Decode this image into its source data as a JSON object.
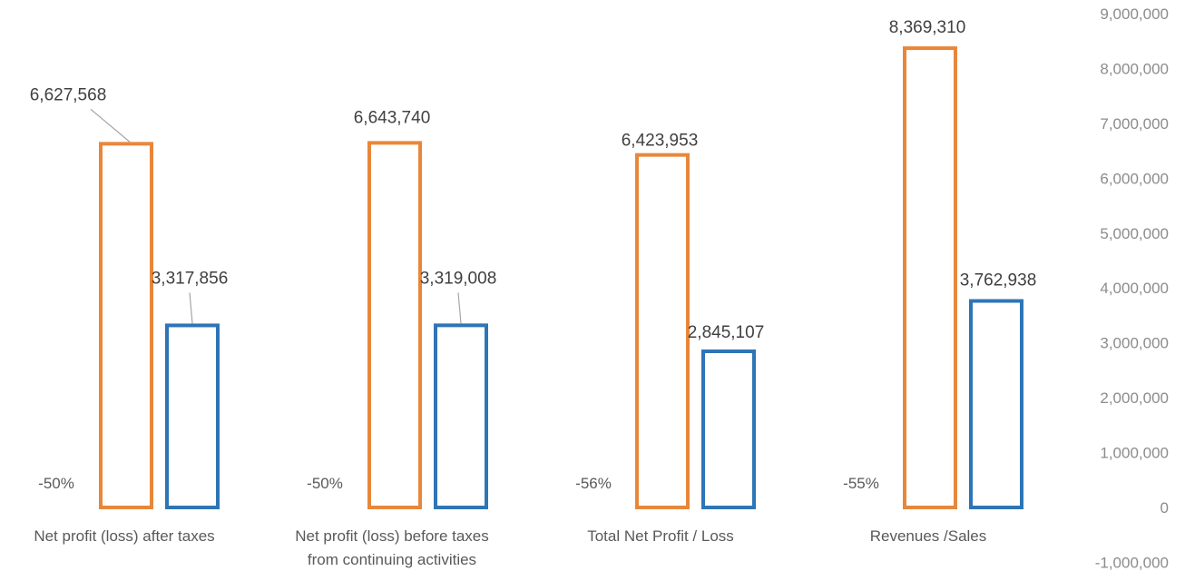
{
  "chart_data": {
    "type": "bar",
    "categories": [
      [
        "Net profit (loss) after taxes"
      ],
      [
        "Net profit (loss) before taxes",
        "from continuing activities"
      ],
      [
        "Total Net Profit / Loss"
      ],
      [
        "Revenues /Sales"
      ]
    ],
    "series": [
      {
        "values": [
          6627568,
          6643740,
          6423953,
          8369310
        ],
        "color": "#e8873a"
      },
      {
        "values": [
          3317856,
          3319008,
          2845107,
          3762938
        ],
        "color": "#2e75b6"
      }
    ],
    "data_labels": [
      [
        "6,627,568",
        "6,643,740",
        "6,423,953",
        "8,369,310"
      ],
      [
        "3,317,856",
        "3,319,008",
        "2,845,107",
        "3,762,938"
      ]
    ],
    "change_labels": [
      "-50%",
      "-50%",
      "-56%",
      "-55%"
    ],
    "y_ticks": [
      "-1,000,000",
      "0",
      "1,000,000",
      "2,000,000",
      "3,000,000",
      "4,000,000",
      "5,000,000",
      "6,000,000",
      "7,000,000",
      "8,000,000",
      "9,000,000"
    ],
    "ylim": [
      -1000000,
      9000000
    ],
    "y_axis_position": "right",
    "grid": false,
    "legend": "none"
  }
}
